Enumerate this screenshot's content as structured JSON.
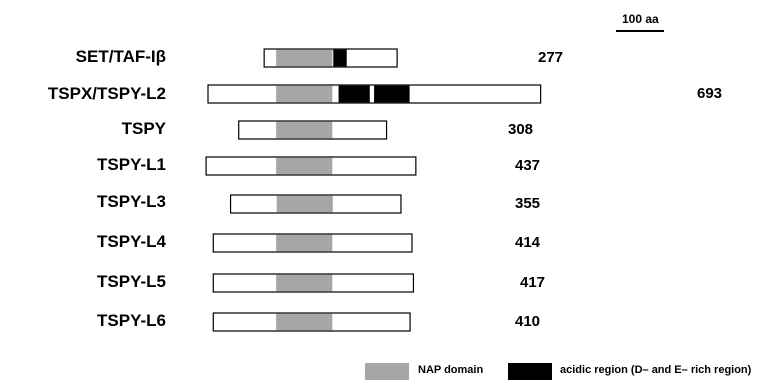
{
  "scale": {
    "label": "100 aa",
    "aa": 100
  },
  "proteins": [
    {
      "name": "SET/TAF-Iβ",
      "length": 277,
      "n_term_offset": 117,
      "segments": [
        {
          "type": "nap",
          "start": 25,
          "end": 142
        },
        {
          "type": "acidic",
          "start": 144,
          "end": 172
        }
      ]
    },
    {
      "name": "TSPX/TSPY-L2",
      "length": 693,
      "n_term_offset": 0,
      "segments": [
        {
          "type": "nap",
          "start": 142,
          "end": 259
        },
        {
          "type": "acidic",
          "start": 272,
          "end": 337
        },
        {
          "type": "acidic",
          "start": 346,
          "end": 420
        }
      ]
    },
    {
      "name": "TSPY",
      "length": 308,
      "n_term_offset": 64,
      "segments": [
        {
          "type": "nap",
          "start": 78,
          "end": 195
        }
      ]
    },
    {
      "name": "TSPY-L1",
      "length": 437,
      "n_term_offset": -4,
      "segments": [
        {
          "type": "nap",
          "start": 146,
          "end": 263
        }
      ]
    },
    {
      "name": "TSPY-L3",
      "length": 355,
      "n_term_offset": 47,
      "segments": [
        {
          "type": "nap",
          "start": 96,
          "end": 213
        }
      ]
    },
    {
      "name": "TSPY-L4",
      "length": 414,
      "n_term_offset": 11,
      "segments": [
        {
          "type": "nap",
          "start": 131,
          "end": 248
        }
      ]
    },
    {
      "name": "TSPY-L5",
      "length": 417,
      "n_term_offset": 11,
      "segments": [
        {
          "type": "nap",
          "start": 131,
          "end": 248
        }
      ]
    },
    {
      "name": "TSPY-L6",
      "length": 410,
      "n_term_offset": 11,
      "segments": [
        {
          "type": "nap",
          "start": 131,
          "end": 248
        }
      ]
    }
  ],
  "legend": {
    "nap_label": "NAP domain",
    "acidic_label": "acidic region (D– and E– rich region)"
  },
  "colors": {
    "nap": "#a6a6a6",
    "acidic": "#000000",
    "background": "#ffffff",
    "stroke": "#000000"
  }
}
